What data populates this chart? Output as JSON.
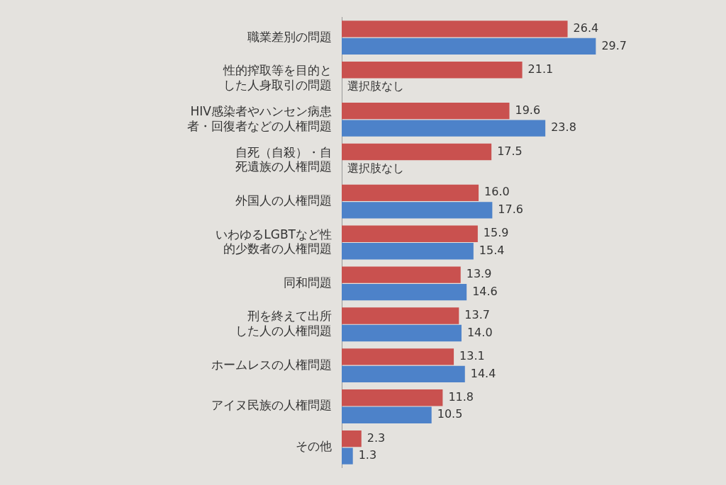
{
  "chart_data": {
    "type": "bar",
    "orientation": "horizontal",
    "tick_labels": "y",
    "grid": false,
    "legend": false,
    "categories": [
      "職業差別の問題",
      "性的搾取等を目的とした人身取引の問題",
      "HIV感染者やハンセン病患者・回復者などの人権問題",
      "自死（自殺）・自死遺族の人権問題",
      "外国人の人権問題",
      "いわゆるLGBTなど性的少数者の人権問題",
      "同和問題",
      "刑を終えて出所した人の人権問題",
      "ホームレスの人権問題",
      "アイヌ民族の人権問題",
      "その他"
    ],
    "series": [
      {
        "color": "#c9514f",
        "values": [
          26.4,
          21.1,
          19.6,
          17.5,
          16.0,
          15.9,
          13.9,
          13.7,
          13.1,
          11.8,
          2.3
        ],
        "value_labels": [
          "26.4",
          "21.1",
          "19.6",
          "17.5",
          "16.0",
          "15.9",
          "13.9",
          "13.7",
          "13.1",
          "11.8",
          "2.3"
        ]
      },
      {
        "color": "#4d82c9",
        "values": [
          29.7,
          null,
          23.8,
          null,
          17.6,
          15.4,
          14.6,
          14.0,
          14.4,
          10.5,
          1.3
        ],
        "value_labels": [
          "29.7",
          "選択肢なし",
          "23.8",
          "選択肢なし",
          "17.6",
          "15.4",
          "14.6",
          "14.0",
          "14.4",
          "10.5",
          "1.3"
        ]
      }
    ]
  }
}
